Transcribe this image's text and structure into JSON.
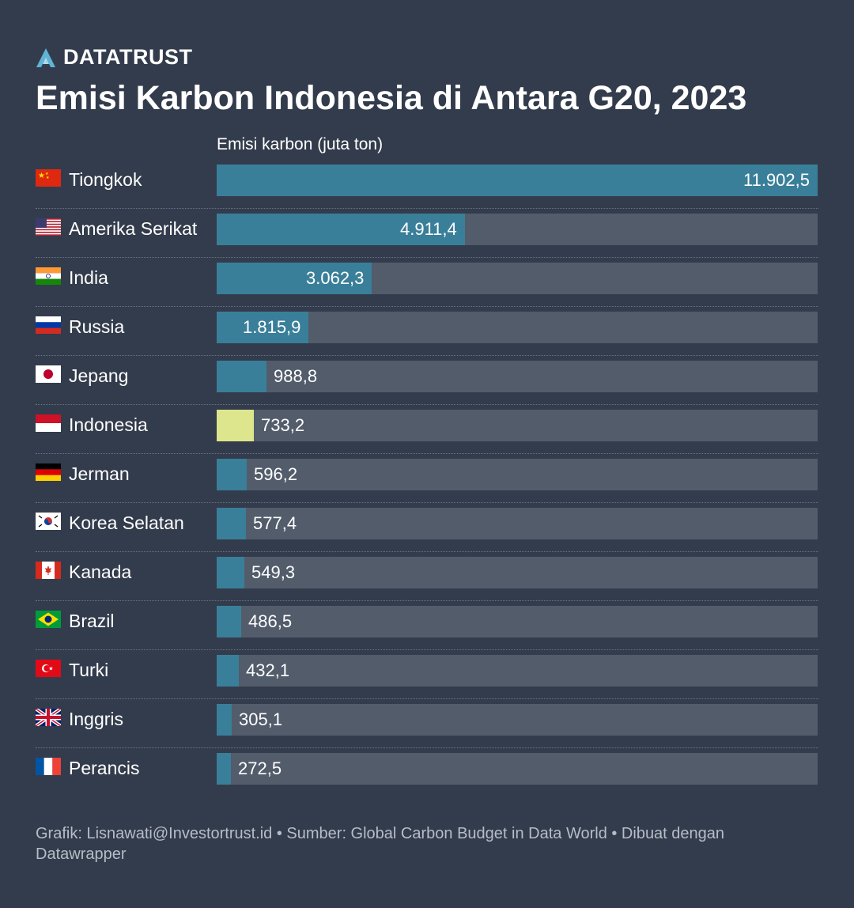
{
  "brand": {
    "name": "DATATRUST",
    "icon": "datatrust-logo-icon"
  },
  "title": "Emisi Karbon Indonesia di Antara G20, 2023",
  "colors": {
    "background": "#333c4c",
    "bar": "#3a7f99",
    "bar_highlight": "#dde58d",
    "track": "#525c6b",
    "text": "#ffffff",
    "footer_text": "#b7bdc7"
  },
  "chart_data": {
    "type": "bar",
    "orientation": "horizontal",
    "value_label": "Emisi karbon (juta ton)",
    "highlight": "Indonesia",
    "xlim": [
      0,
      11902.5
    ],
    "categories": [
      "Tiongkok",
      "Amerika Serikat",
      "India",
      "Russia",
      "Jepang",
      "Indonesia",
      "Jerman",
      "Korea Selatan",
      "Kanada",
      "Brazil",
      "Turki",
      "Inggris",
      "Perancis"
    ],
    "values": [
      11902.5,
      4911.4,
      3062.3,
      1815.9,
      988.8,
      733.2,
      596.2,
      577.4,
      549.3,
      486.5,
      432.1,
      305.1,
      272.5
    ],
    "value_labels": [
      "11.902,5",
      "4.911,4",
      "3.062,3",
      "1.815,9",
      "988,8",
      "733,2",
      "596,2",
      "577,4",
      "549,3",
      "486,5",
      "432,1",
      "305,1",
      "272,5"
    ],
    "flags": [
      "china-flag-icon",
      "usa-flag-icon",
      "india-flag-icon",
      "russia-flag-icon",
      "japan-flag-icon",
      "indonesia-flag-icon",
      "germany-flag-icon",
      "south-korea-flag-icon",
      "canada-flag-icon",
      "brazil-flag-icon",
      "turkey-flag-icon",
      "uk-flag-icon",
      "france-flag-icon"
    ]
  },
  "footer": "Grafik: Lisnawati@Investortrust.id • Sumber: Global Carbon Budget in Data World • Dibuat dengan Datawrapper"
}
